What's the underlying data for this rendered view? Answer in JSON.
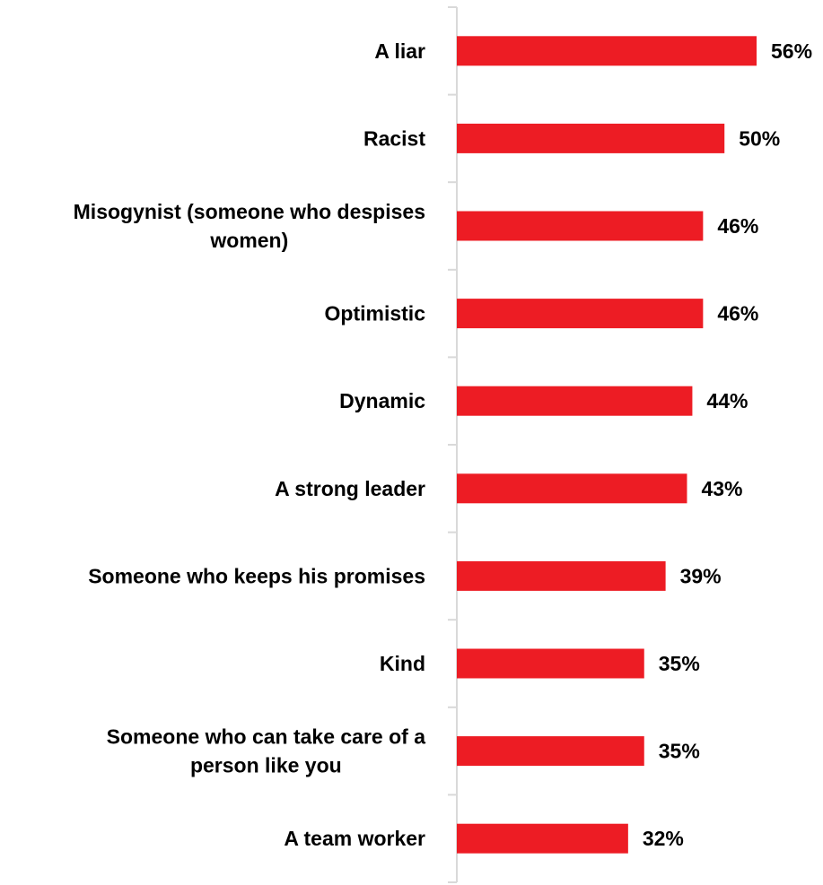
{
  "chart_data": {
    "type": "bar",
    "orientation": "horizontal",
    "categories": [
      "A liar",
      "Racist",
      "Misogynist (someone who despises women)",
      "Optimistic",
      "Dynamic",
      "A strong leader",
      "Someone who keeps his promises",
      "Kind",
      "Someone who can take care of a person like you",
      "A team worker"
    ],
    "category_lines": [
      [
        "A liar"
      ],
      [
        "Racist"
      ],
      [
        "Misogynist (someone who despises",
        "women)"
      ],
      [
        "Optimistic"
      ],
      [
        "Dynamic"
      ],
      [
        "A strong leader"
      ],
      [
        "Someone who keeps his promises"
      ],
      [
        "Kind"
      ],
      [
        "Someone who can take care of a",
        "person like you"
      ],
      [
        "A team worker"
      ]
    ],
    "values": [
      56,
      50,
      46,
      46,
      44,
      43,
      39,
      35,
      35,
      32
    ],
    "value_labels": [
      "56%",
      "50%",
      "46%",
      "46%",
      "44%",
      "43%",
      "39%",
      "35%",
      "35%",
      "32%"
    ],
    "xlim": [
      0,
      56
    ],
    "grid": false,
    "legend": "none",
    "colors": {
      "bar": "#ed1c24",
      "axis": "#d9d9d9",
      "text": "#000000"
    }
  }
}
